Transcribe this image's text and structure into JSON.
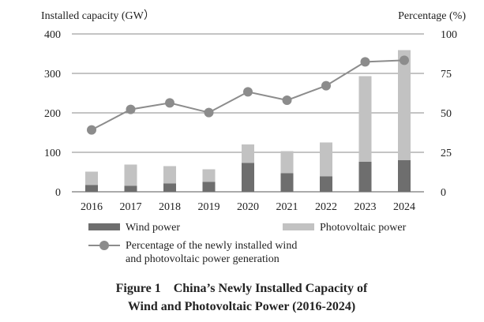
{
  "chart_data": {
    "type": "bar",
    "stacked": true,
    "title": "Figure 1    China’s Newly Installed Capacity of",
    "title_line2": "Wind and Photovoltaic Power (2016-2024)",
    "ylabel": "Installed capacity (GW）",
    "y2label": "Percentage (%)",
    "ylim": [
      0,
      400
    ],
    "y2lim": [
      0,
      100
    ],
    "yticks": [
      0,
      100,
      200,
      300,
      400
    ],
    "y2ticks": [
      0,
      25,
      50,
      75,
      100
    ],
    "grid": true,
    "categories": [
      "2016",
      "2017",
      "2018",
      "2019",
      "2020",
      "2021",
      "2022",
      "2023",
      "2024"
    ],
    "series": [
      {
        "name": "Wind power",
        "type": "bar",
        "color": "#6e6e6e",
        "values": [
          17,
          15,
          21,
          25,
          73,
          47,
          39,
          76,
          80
        ]
      },
      {
        "name": "Photovoltaic power",
        "type": "bar",
        "color": "#c2c2c2",
        "values": [
          34,
          54,
          44,
          32,
          47,
          56,
          86,
          217,
          279
        ]
      },
      {
        "name": "Percentage of the newly installed wind",
        "name_line2": "and photovoltaic power generation",
        "type": "line",
        "axis": "right",
        "color": "#8c8c8c",
        "values": [
          39.2,
          52.2,
          56.3,
          50.2,
          63.3,
          58.0,
          67.2,
          82.3,
          83.3
        ]
      }
    ],
    "legend_placement": "bottom"
  }
}
